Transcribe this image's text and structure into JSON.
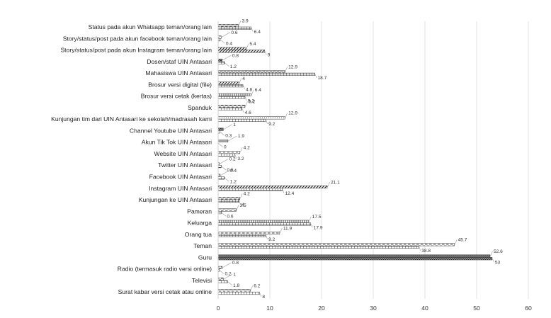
{
  "chart_data": {
    "type": "bar",
    "orientation": "horizontal",
    "categories": [
      "Surat kabar versi cetak atau online",
      "Televisi",
      "Radio (termasuk radio versi online)",
      "Guru",
      "Teman",
      "Orang tua",
      "Keluarga",
      "Pameran",
      "Kunjungan ke UIN Antasari",
      "Instagram UIN Antasari",
      "Facebook UIN Antasari",
      "Twitter UIN Antasari",
      "Website UIN Antasari",
      "Akun Tik Tok UIN Antasari",
      "Channel Youtube UIN Antasari",
      "Kunjungan tim dari UIN Antasari ke sekolah/madrasah kami",
      "Spanduk",
      "Brosur versi cetak (kertas)",
      "Brosur versi digital (file)",
      "Mahasiswa UIN Antasari",
      "Dosen/staf UIN Antasari",
      "Story/status/post pada akun Instagram teman/orang lain",
      "Story/status/post pada akun facebook teman/orang lain",
      "Status pada akun Whatsapp teman/orang lain"
    ],
    "series": [
      {
        "values": [
          6.2,
          1,
          0.8,
          52.6,
          45.7,
          11.9,
          17.5,
          3.5,
          4.2,
          21.1,
          0.4,
          0.2,
          4.2,
          1.9,
          1,
          12.9,
          5.2,
          6.4,
          4,
          12.9,
          0.8,
          5.4,
          0.6,
          3.9
        ],
        "labels": [
          "6.2",
          "1",
          "0.8",
          "52.6",
          "45.7",
          "11.9",
          "17.5",
          "3.5",
          "4.2",
          "21.1",
          "0.4",
          "0.2",
          "4.2",
          "1.9",
          "1",
          "12.9",
          "5.2",
          "6.4",
          "4",
          "12.9",
          "0.8",
          "5.4",
          "0.6",
          "3.9"
        ],
        "pattern": "dash"
      },
      {
        "values": [
          8,
          1.8,
          0.2,
          53,
          38.8,
          9.2,
          17.9,
          0.6,
          4,
          12.4,
          1.2,
          0.6,
          3.2,
          0,
          0.3,
          9.2,
          4.6,
          5.2,
          4.8,
          18.7,
          1.2,
          9,
          0.4,
          6.4
        ],
        "labels": [
          "8",
          "1.8",
          "0.2",
          "53",
          "38.8",
          "9.2",
          "17.9",
          "0.6",
          "4",
          "12.4",
          "1.2",
          "0.6",
          "3.2",
          "0",
          "0.3",
          "9.2",
          "4.6",
          "5.2",
          "4.8",
          "18.7",
          "1.2",
          "9",
          "0.4",
          "6.4"
        ],
        "pattern": "grid"
      }
    ],
    "xlim": [
      0,
      60
    ],
    "xticks": [
      "0",
      "10",
      "20",
      "30",
      "40",
      "50",
      "60"
    ],
    "grid": "vertical",
    "legend": "none"
  }
}
